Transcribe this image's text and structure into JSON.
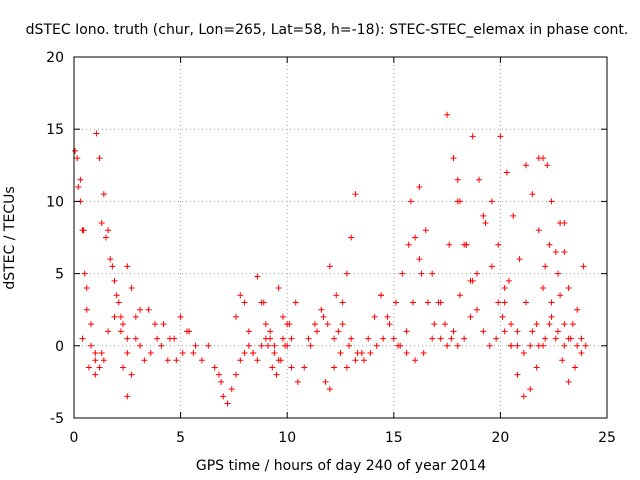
{
  "chart_data": {
    "type": "scatter",
    "title": "dSTEC Iono. truth (chur, Lon=265, Lat=58, h=-18): STEC-STEC_elemax in phase cont.",
    "xlabel": "GPS time / hours of day 240 of year 2014",
    "ylabel": "dSTEC  / TECUs",
    "xlim": [
      0,
      25
    ],
    "ylim": [
      -5,
      20
    ],
    "xticks": [
      0,
      5,
      10,
      15,
      20,
      25
    ],
    "yticks": [
      -5,
      0,
      5,
      10,
      15,
      20
    ],
    "xtick_labels": [
      "0",
      "5",
      "10",
      "15",
      "20",
      "25"
    ],
    "ytick_labels": [
      "-5",
      "0",
      "5",
      "10",
      "15",
      "20"
    ],
    "grid": true,
    "marker": "+",
    "color": "#ff0000",
    "arcs": [
      {
        "x": [
          0.05,
          0.15,
          0.3,
          0.45,
          0.6,
          0.8,
          1.0,
          1.2,
          1.4
        ],
        "y": [
          13.5,
          13.0,
          11.5,
          8.0,
          4.0,
          1.5,
          -0.5,
          -1.5,
          -1.0
        ]
      },
      {
        "x": [
          0.2,
          0.3,
          0.4,
          0.5,
          0.6,
          0.8,
          1.0
        ],
        "y": [
          11.0,
          10.0,
          8.0,
          5.0,
          2.5,
          0.0,
          -1.0
        ]
      },
      {
        "x": [
          1.05,
          1.2,
          1.4,
          1.6,
          1.8,
          2.0,
          2.2,
          2.5
        ],
        "y": [
          14.7,
          13.0,
          10.5,
          8.0,
          5.5,
          3.5,
          2.0,
          0.5
        ]
      },
      {
        "x": [
          1.3,
          1.5,
          1.7,
          1.9,
          2.1,
          2.3
        ],
        "y": [
          8.5,
          7.5,
          6.0,
          4.5,
          3.0,
          1.5
        ]
      },
      {
        "x": [
          0.4,
          0.7,
          1.0,
          1.3,
          1.6,
          1.9,
          2.2,
          2.5
        ],
        "y": [
          0.5,
          -1.5,
          -2.0,
          -0.5,
          1.0,
          2.0,
          1.0,
          -0.5
        ]
      },
      {
        "x": [
          2.3,
          2.5,
          2.7,
          2.9,
          3.1
        ],
        "y": [
          -1.5,
          -3.5,
          -2.0,
          0.5,
          2.5
        ]
      },
      {
        "x": [
          2.5,
          2.7,
          2.9,
          3.1,
          3.3,
          3.6,
          3.9,
          4.2,
          4.5,
          4.8,
          5.1,
          5.4,
          5.7,
          6.0,
          6.3,
          6.6,
          6.9
        ],
        "y": [
          5.5,
          4.0,
          2.0,
          0.0,
          -1.0,
          -0.5,
          0.5,
          1.5,
          0.5,
          -1.0,
          -0.5,
          1.0,
          0.0,
          -1.0,
          0.0,
          -1.5,
          -2.5
        ]
      },
      {
        "x": [
          3.5,
          3.8,
          4.1,
          4.4,
          4.7,
          5.0,
          5.3,
          5.6
        ],
        "y": [
          2.5,
          1.5,
          0.0,
          -1.0,
          0.5,
          2.0,
          1.0,
          -0.5
        ]
      },
      {
        "x": [
          6.8,
          7.0,
          7.2,
          7.4,
          7.6,
          7.8,
          8.0,
          8.2,
          8.4,
          8.6,
          8.8,
          9.0,
          9.2,
          9.4,
          9.6,
          9.8,
          10.0,
          10.2
        ],
        "y": [
          -2.0,
          -3.5,
          -4.0,
          -3.0,
          -2.0,
          -1.0,
          -0.5,
          0.0,
          -0.5,
          -1.0,
          0.0,
          0.5,
          1.0,
          0.0,
          -1.0,
          0.5,
          1.5,
          0.5
        ]
      },
      {
        "x": [
          7.6,
          7.8,
          8.0,
          8.2,
          8.4
        ],
        "y": [
          2.0,
          3.5,
          3.0,
          1.0,
          -0.5
        ]
      },
      {
        "x": [
          8.6,
          8.8,
          9.0,
          9.2,
          9.4
        ],
        "y": [
          4.8,
          3.0,
          1.5,
          0.5,
          -0.5
        ]
      },
      {
        "x": [
          9.6,
          9.8,
          10.0,
          10.2,
          10.5,
          10.8,
          11.1,
          11.4,
          11.7
        ],
        "y": [
          4.0,
          2.0,
          0.0,
          -1.5,
          -2.5,
          -1.5,
          0.0,
          1.0,
          2.0
        ]
      },
      {
        "x": [
          8.9,
          9.1,
          9.3,
          9.5,
          9.7,
          9.9,
          10.1,
          10.4
        ],
        "y": [
          3.0,
          0.0,
          -1.5,
          -2.0,
          -1.0,
          0.0,
          1.5,
          3.0
        ]
      },
      {
        "x": [
          11.8,
          12.0,
          12.2,
          12.4,
          12.6,
          12.8,
          13.0,
          13.2
        ],
        "y": [
          -2.5,
          -3.0,
          -1.5,
          1.0,
          3.0,
          5.0,
          7.5,
          10.5
        ]
      },
      {
        "x": [
          11.0,
          11.3,
          11.6,
          11.9,
          12.2,
          12.5,
          12.8
        ],
        "y": [
          0.5,
          1.5,
          2.5,
          1.5,
          0.5,
          -0.5,
          -1.5
        ]
      },
      {
        "x": [
          12.0,
          12.3,
          12.6,
          12.9,
          13.2,
          13.5,
          13.8,
          14.1,
          14.4
        ],
        "y": [
          5.5,
          3.5,
          1.5,
          0.0,
          -1.0,
          -0.5,
          0.5,
          2.0,
          3.5
        ]
      },
      {
        "x": [
          13.0,
          13.3,
          13.6,
          13.9,
          14.2,
          14.5,
          14.8,
          15.1,
          15.4,
          15.7
        ],
        "y": [
          0.5,
          -0.5,
          -1.0,
          -0.5,
          0.0,
          0.5,
          1.5,
          3.0,
          5.0,
          7.0
        ]
      },
      {
        "x": [
          14.4,
          14.7,
          15.0,
          15.3,
          15.6,
          15.9,
          16.2
        ],
        "y": [
          3.5,
          2.0,
          0.5,
          0.0,
          1.0,
          3.0,
          6.0
        ]
      },
      {
        "x": [
          15.2,
          15.6,
          16.0,
          16.4,
          16.8,
          17.2,
          17.6,
          18.0
        ],
        "y": [
          0.0,
          -0.5,
          -1.0,
          -0.5,
          0.5,
          3.0,
          7.0,
          11.5
        ]
      },
      {
        "x": [
          15.8,
          16.0,
          16.3,
          16.6,
          16.9,
          17.2,
          17.5,
          17.8,
          18.1,
          18.4
        ],
        "y": [
          10.0,
          7.5,
          5.0,
          3.0,
          1.5,
          0.5,
          0.0,
          1.0,
          3.5,
          7.0
        ]
      },
      {
        "x": [
          16.2,
          16.5,
          16.8,
          17.1,
          17.4,
          17.7,
          18.0,
          18.3,
          18.6,
          18.9,
          19.2
        ],
        "y": [
          11.0,
          8.0,
          5.0,
          3.0,
          1.5,
          0.5,
          0.0,
          0.5,
          2.0,
          5.0,
          9.0
        ]
      },
      {
        "x": [
          17.5,
          17.8,
          18.1,
          18.4,
          18.7
        ],
        "y": [
          16.0,
          13.0,
          10.0,
          7.0,
          4.5
        ]
      },
      {
        "x": [
          18.0,
          18.3,
          18.6,
          18.9,
          19.2,
          19.5,
          19.8,
          20.1,
          20.4
        ],
        "y": [
          10.0,
          7.0,
          4.5,
          2.5,
          1.0,
          0.0,
          0.5,
          2.0,
          4.5
        ]
      },
      {
        "x": [
          18.7,
          19.0,
          19.3,
          19.6,
          19.9,
          20.2,
          20.5,
          20.8
        ],
        "y": [
          14.5,
          11.5,
          8.5,
          5.5,
          3.0,
          1.0,
          0.0,
          1.0
        ]
      },
      {
        "x": [
          19.6,
          19.9,
          20.2,
          20.5,
          20.8,
          21.1,
          21.4,
          21.7,
          22.0,
          22.3
        ],
        "y": [
          10.0,
          7.0,
          4.0,
          1.5,
          0.0,
          -0.5,
          0.0,
          1.5,
          4.0,
          7.0
        ]
      },
      {
        "x": [
          20.0,
          20.3,
          20.6,
          20.9,
          21.2,
          21.5,
          21.8,
          22.1,
          22.4,
          22.7,
          23.0
        ],
        "y": [
          14.5,
          12.0,
          9.0,
          6.0,
          3.0,
          1.0,
          0.0,
          0.5,
          2.0,
          5.0,
          8.5
        ]
      },
      {
        "x": [
          20.2,
          20.5,
          20.8,
          21.1,
          21.4,
          21.7,
          22.0,
          22.3,
          22.6,
          22.9,
          23.2,
          23.5,
          23.8
        ],
        "y": [
          3.0,
          0.0,
          -2.0,
          -3.5,
          -3.0,
          -1.5,
          0.0,
          1.5,
          0.5,
          -1.0,
          -2.5,
          -1.5,
          0.5
        ]
      },
      {
        "x": [
          21.2,
          21.5,
          21.8,
          22.1,
          22.4,
          22.7,
          23.0,
          23.3,
          23.6,
          23.9
        ],
        "y": [
          12.5,
          10.5,
          8.0,
          5.5,
          3.0,
          1.0,
          0.0,
          0.5,
          2.5,
          5.5
        ]
      },
      {
        "x": [
          21.8,
          22.0,
          22.2,
          22.4,
          22.6,
          22.8,
          23.0,
          23.2
        ],
        "y": [
          13.0,
          13.0,
          12.5,
          10.0,
          6.5,
          3.5,
          1.5,
          0.5
        ]
      },
      {
        "x": [
          22.8,
          23.0,
          23.2,
          23.4,
          23.6,
          23.8,
          24.0
        ],
        "y": [
          8.5,
          6.5,
          4.0,
          1.5,
          0.0,
          -0.5,
          0.0
        ]
      }
    ]
  }
}
